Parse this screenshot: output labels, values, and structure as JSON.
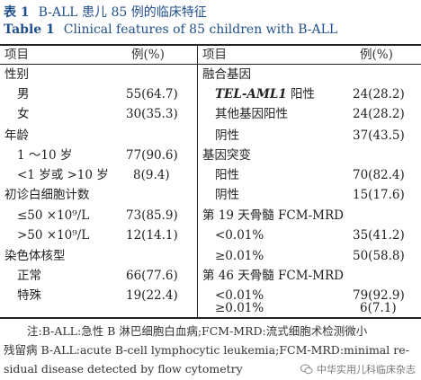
{
  "caption": {
    "zh_label": "表 1",
    "zh_title": "B-ALL 患儿 85 例的临床特征",
    "en_label": "Table 1",
    "en_title": "Clinical features of 85 children with B-ALL"
  },
  "headers": {
    "item": "项目",
    "value": "例(%)"
  },
  "left_rows": [
    {
      "label": "性别",
      "value": ""
    },
    {
      "label": "男",
      "value": "55(64.7)"
    },
    {
      "label": "女",
      "value": "30(35.3)"
    },
    {
      "label": "年龄",
      "value": ""
    },
    {
      "label": "1 ～10 岁",
      "value": "77(90.6)"
    },
    {
      "label": "<1 岁或 >10 岁",
      "value": "8(9.4)"
    },
    {
      "label": "初诊白细胞计数",
      "value": ""
    },
    {
      "label": "≤50 ×10⁹/L",
      "value": "73(85.9)"
    },
    {
      "label": ">50 ×10⁹/L",
      "value": "12(14.1)"
    },
    {
      "label": "染色体核型",
      "value": ""
    },
    {
      "label": "正常",
      "value": "66(77.6)"
    },
    {
      "label": "特殊",
      "value": "19(22.4)"
    }
  ],
  "right_rows": [
    {
      "label": "融合基因",
      "value": ""
    },
    {
      "label_italic": "TEL-AML1",
      "label": " 阳性",
      "value": "24(28.2)"
    },
    {
      "label": "其他基因阳性",
      "value": "24(28.2)"
    },
    {
      "label": "阴性",
      "value": "37(43.5)"
    },
    {
      "label": "基因突变",
      "value": ""
    },
    {
      "label": "阳性",
      "value": "70(82.4)"
    },
    {
      "label": "阴性",
      "value": "15(17.6)"
    },
    {
      "label": "第 19 天骨髓 FCM-MRD",
      "value": ""
    },
    {
      "label": "<0.01%",
      "value": "35(41.2)"
    },
    {
      "label": "≥0.01%",
      "value": "50(58.8)"
    },
    {
      "label": "第 46 天骨髓 FCM-MRD",
      "value": ""
    },
    {
      "label": "<0.01%",
      "value": "79(92.9)"
    },
    {
      "label": "≥0.01%",
      "value": "6(7.1)"
    }
  ],
  "note": {
    "line1": "注:B-ALL:急性 B 淋巴细胞白血病;FCM-MRD:流式细胞术检测微小",
    "line2": "残留病  B-ALL:acute B-cell lymphocytic leukemia;FCM-MRD:minimal re-",
    "line3": "sidual disease detected by flow cytometry"
  },
  "watermark": "中华实用儿科临床杂志"
}
